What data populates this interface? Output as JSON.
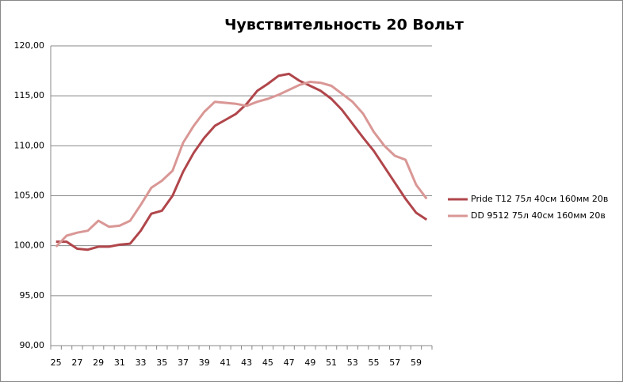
{
  "chart_data": {
    "type": "line",
    "title": "Чувствительность 20 Вольт",
    "categories": [
      "25",
      null,
      "27",
      null,
      "29",
      null,
      "31",
      null,
      "33",
      null,
      "35",
      null,
      "37",
      null,
      "39",
      null,
      "41",
      null,
      "43",
      null,
      "45",
      null,
      "47",
      null,
      "49",
      null,
      "51",
      null,
      "53",
      null,
      "55",
      null,
      "57",
      null,
      "59",
      null
    ],
    "series": [
      {
        "name": "Pride T12 75л 40см  160мм  20в",
        "color": "#b0464b",
        "values": [
          100.4,
          100.4,
          99.7,
          99.6,
          99.9,
          99.9,
          100.1,
          100.2,
          101.5,
          103.2,
          103.5,
          105.0,
          107.4,
          109.3,
          110.8,
          112.0,
          112.6,
          113.2,
          114.2,
          115.5,
          116.2,
          117.0,
          117.2,
          116.5,
          116.0,
          115.5,
          114.7,
          113.6,
          112.2,
          110.8,
          109.5,
          107.9,
          106.3,
          104.7,
          103.3,
          102.6
        ]
      },
      {
        "name": "DD 9512 75л 40см  160мм  20в",
        "color": "#d99795",
        "values": [
          99.9,
          101.0,
          101.3,
          101.5,
          102.5,
          101.9,
          102.0,
          102.5,
          104.1,
          105.8,
          106.5,
          107.5,
          110.3,
          112.0,
          113.4,
          114.4,
          114.3,
          114.2,
          114.0,
          114.4,
          114.7,
          115.1,
          115.6,
          116.1,
          116.4,
          116.3,
          116.0,
          115.2,
          114.4,
          113.2,
          111.4,
          110.0,
          109.0,
          108.6,
          106.1,
          104.7
        ]
      }
    ],
    "ylim": [
      90,
      120
    ],
    "yticks": [
      {
        "value": 90,
        "label": "90,00"
      },
      {
        "value": 95,
        "label": "95,00"
      },
      {
        "value": 100,
        "label": "100,00"
      },
      {
        "value": 105,
        "label": "105,00"
      },
      {
        "value": 110,
        "label": "110,00"
      },
      {
        "value": 115,
        "label": "115,00"
      },
      {
        "value": 120,
        "label": "120,00"
      }
    ],
    "grid": true,
    "legend": "right"
  }
}
